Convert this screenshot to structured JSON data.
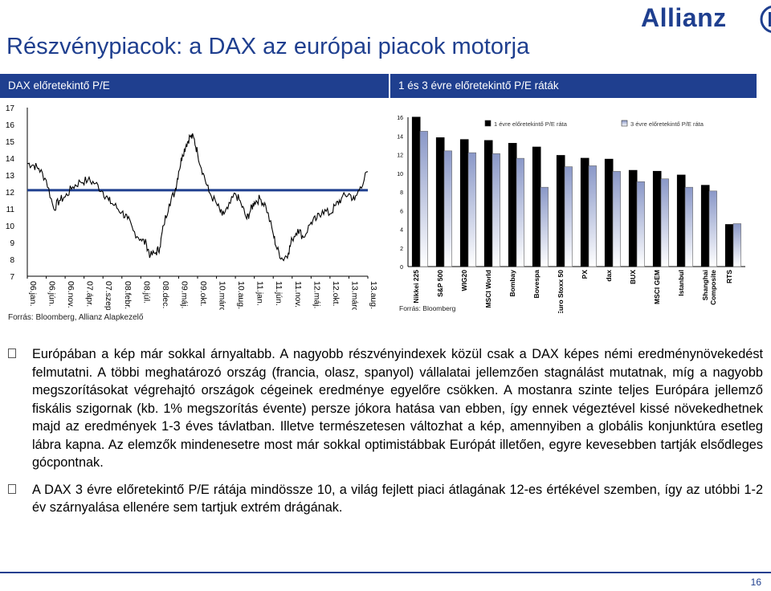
{
  "page": {
    "title": "Részvénypiacok: a DAX az európai piacok motorja",
    "page_number": "16",
    "brand": "Allianz"
  },
  "left_panel": {
    "header": "DAX előretekintő P/E",
    "source": "Forrás: Bloomberg, Allianz Alapkezelő"
  },
  "right_panel": {
    "header": "1 és 3 évre előretekintő P/E ráták",
    "source": "Forrás: Bloomberg"
  },
  "colors": {
    "brand_blue": "#1f3f8f",
    "line": "#000000",
    "average_line": "#1f3f8f",
    "bar_1y": "#000000",
    "bar_3y_gradient_top": "#8a98c8",
    "bar_3y_gradient_bottom": "#ffffff"
  },
  "chart_data": [
    {
      "type": "line",
      "title": "DAX előretekintő P/E",
      "x_tick_labels": [
        "06.jan.",
        "06.jún.",
        "06.nov.",
        "07.ápr.",
        "07.szept.",
        "08.febr.",
        "08.júl.",
        "08.dec.",
        "09.máj.",
        "09.okt.",
        "10.márc.",
        "10.aug.",
        "11.jan.",
        "11.jún.",
        "11.nov.",
        "12.máj.",
        "12.okt.",
        "13.márc.",
        "13.aug."
      ],
      "ylim": [
        7,
        17
      ],
      "y_ticks": [
        7,
        8,
        9,
        10,
        11,
        12,
        13,
        14,
        15,
        16,
        17
      ],
      "grid": false,
      "average_line": 12.1,
      "series": [
        {
          "x": [
            0,
            0.3,
            0.6,
            1.0,
            1.4,
            1.7,
            2.0,
            2.4,
            2.8,
            3.2,
            3.6,
            4.0,
            4.3,
            4.6,
            5.0,
            5.3,
            5.6,
            6.0,
            6.3,
            6.5,
            6.8,
            7.0,
            7.2,
            7.5,
            7.8,
            8.0,
            8.2,
            8.4,
            8.6,
            8.8,
            9.0,
            9.3,
            9.6,
            10.0,
            10.3,
            10.6,
            11.0,
            11.3,
            11.6,
            11.8,
            12.0,
            12.3,
            12.6,
            13.0,
            13.2,
            13.5,
            13.8,
            14.0,
            14.3,
            14.6,
            15.0,
            15.3,
            15.6,
            16.0,
            16.3,
            16.6,
            17.0,
            17.3,
            17.6,
            18.0
          ],
          "values": [
            13.7,
            13.6,
            13.4,
            12.7,
            11.0,
            11.5,
            11.7,
            12.3,
            12.6,
            12.7,
            12.5,
            12.0,
            11.5,
            11.2,
            10.8,
            10.4,
            9.7,
            9.2,
            8.9,
            8.2,
            8.4,
            8.7,
            10.0,
            11.3,
            12.0,
            13.2,
            14.2,
            14.8,
            15.3,
            15.2,
            14.3,
            13.1,
            12.0,
            11.3,
            10.6,
            11.0,
            11.9,
            11.3,
            10.4,
            10.9,
            11.4,
            11.6,
            11.2,
            9.5,
            8.6,
            8.0,
            8.4,
            9.2,
            9.8,
            9.3,
            10.2,
            10.4,
            10.9,
            10.7,
            11.2,
            11.6,
            11.9,
            11.5,
            12.3,
            13.2
          ]
        }
      ]
    },
    {
      "type": "bar",
      "title": "1 és 3 évre előretekintő P/E ráták",
      "categories": [
        "Nikkei 225",
        "S&P 500",
        "WIG20",
        "MSCI World",
        "Bombay",
        "Bovespa",
        "Euro Stoxx 50",
        "PX",
        "dax",
        "BUX",
        "MSCI GEM",
        "Istanbul",
        "Shanghai Composite",
        "RTS"
      ],
      "ylim": [
        0,
        16
      ],
      "y_ticks": [
        0,
        2,
        4,
        6,
        8,
        10,
        12,
        14,
        16
      ],
      "grid": false,
      "legend_position": "top-right",
      "series": [
        {
          "name": "1 évre előretekintő P/E ráta",
          "values": [
            16.0,
            13.8,
            13.6,
            13.5,
            13.2,
            12.8,
            11.9,
            11.6,
            11.5,
            10.3,
            10.2,
            9.8,
            8.7,
            4.5
          ]
        },
        {
          "name": "3 évre előretekintő P/E ráta",
          "values": [
            14.5,
            12.4,
            12.2,
            12.1,
            11.6,
            8.5,
            10.7,
            10.8,
            10.2,
            9.1,
            9.4,
            8.5,
            8.1,
            4.6
          ]
        }
      ]
    }
  ],
  "bullets": [
    "Európában a kép már sokkal árnyaltabb. A nagyobb részvényindexek közül csak a DAX képes némi eredménynövekedést felmutatni. A többi meghatározó ország (francia, olasz, spanyol) vállalatai jellemzően stagnálást mutatnak, míg a nagyobb megszorításokat végrehajtó országok cégeinek eredménye egyelőre csökken. A mostanra szinte teljes Európára jellemző fiskális szigornak (kb. 1% megszorítás évente) persze jókora hatása van ebben, így ennek végeztével kissé növekedhetnek majd az eredmények 1-3 éves távlatban. Illetve természetesen változhat a kép, amennyiben a globális konjunktúra esetleg lábra kapna. Az elemzők mindenesetre most már sokkal optimistábbak Európát illetően, egyre kevesebben tartják elsődleges gócpontnak.",
    "A DAX 3 évre előretekintő P/E rátája mindössze 10, a világ fejlett piaci átlagának 12-es értékével szemben, így az utóbbi 1-2 év szárnyalása ellenére sem tartjuk extrém drágának."
  ]
}
